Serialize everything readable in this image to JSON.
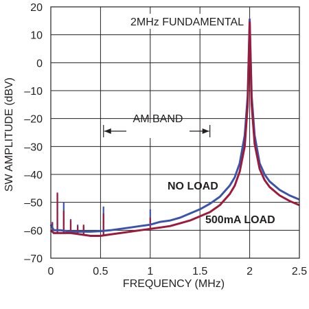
{
  "chart_data": {
    "type": "line",
    "title": "",
    "xlabel": "FREQUENCY (MHz)",
    "ylabel": "SW AMPLITUDE (dBV)",
    "xlim": [
      0,
      2.5
    ],
    "ylim": [
      -70,
      20
    ],
    "x_ticks": [
      "0",
      "0.5",
      "1",
      "1.5",
      "2",
      "2.5"
    ],
    "y_ticks": [
      "–70",
      "–60",
      "–50",
      "–40",
      "–30",
      "–20",
      "–10",
      "0",
      "10",
      "20"
    ],
    "grid": true,
    "colors": {
      "no_load": "#3a55a8",
      "load": "#9b1b3c",
      "grid": "#231f20"
    },
    "series": [
      {
        "name": "NO LOAD",
        "color": "#3a55a8",
        "points": [
          [
            0.0,
            -58.0
          ],
          [
            0.03,
            -60.0
          ],
          [
            0.1,
            -60.0
          ],
          [
            0.2,
            -60.5
          ],
          [
            0.3,
            -60.5
          ],
          [
            0.4,
            -60.5
          ],
          [
            0.5,
            -60.3
          ],
          [
            0.6,
            -60.0
          ],
          [
            0.7,
            -59.5
          ],
          [
            0.8,
            -59.0
          ],
          [
            0.9,
            -58.5
          ],
          [
            1.0,
            -58.0
          ],
          [
            1.1,
            -57.0
          ],
          [
            1.2,
            -56.5
          ],
          [
            1.3,
            -55.5
          ],
          [
            1.4,
            -54.0
          ],
          [
            1.5,
            -52.5
          ],
          [
            1.6,
            -50.5
          ],
          [
            1.7,
            -48.0
          ],
          [
            1.8,
            -44.0
          ],
          [
            1.85,
            -41.0
          ],
          [
            1.9,
            -36.0
          ],
          [
            1.95,
            -26.0
          ],
          [
            1.98,
            -12.0
          ],
          [
            2.0,
            15.5
          ],
          [
            2.02,
            -12.0
          ],
          [
            2.05,
            -26.0
          ],
          [
            2.1,
            -36.0
          ],
          [
            2.15,
            -40.0
          ],
          [
            2.2,
            -42.5
          ],
          [
            2.3,
            -45.5
          ],
          [
            2.4,
            -47.5
          ],
          [
            2.5,
            -49.0
          ]
        ],
        "spurs": [
          [
            0.016,
            -57.0
          ],
          [
            0.066,
            -47.0
          ],
          [
            0.13,
            -50.0
          ],
          [
            0.2,
            -56.0
          ],
          [
            0.27,
            -58.0
          ],
          [
            0.33,
            -58.5
          ],
          [
            0.53,
            -51.5
          ],
          [
            1.0,
            -52.5
          ]
        ]
      },
      {
        "name": "500mA LOAD",
        "color": "#9b1b3c",
        "points": [
          [
            0.0,
            -60.0
          ],
          [
            0.03,
            -61.0
          ],
          [
            0.1,
            -61.0
          ],
          [
            0.2,
            -61.0
          ],
          [
            0.3,
            -61.5
          ],
          [
            0.4,
            -62.0
          ],
          [
            0.5,
            -62.0
          ],
          [
            0.6,
            -61.5
          ],
          [
            0.7,
            -61.0
          ],
          [
            0.8,
            -60.5
          ],
          [
            0.9,
            -60.0
          ],
          [
            1.0,
            -59.5
          ],
          [
            1.1,
            -59.0
          ],
          [
            1.2,
            -58.5
          ],
          [
            1.3,
            -57.5
          ],
          [
            1.4,
            -56.5
          ],
          [
            1.5,
            -55.0
          ],
          [
            1.6,
            -53.5
          ],
          [
            1.7,
            -51.0
          ],
          [
            1.8,
            -47.0
          ],
          [
            1.85,
            -44.0
          ],
          [
            1.9,
            -39.0
          ],
          [
            1.95,
            -30.0
          ],
          [
            1.98,
            -15.0
          ],
          [
            2.0,
            14.5
          ],
          [
            2.02,
            -15.0
          ],
          [
            2.05,
            -29.0
          ],
          [
            2.1,
            -38.0
          ],
          [
            2.15,
            -42.0
          ],
          [
            2.2,
            -44.5
          ],
          [
            2.3,
            -47.5
          ],
          [
            2.4,
            -49.5
          ],
          [
            2.5,
            -51.0
          ]
        ],
        "spurs": [
          [
            0.016,
            -57.5
          ],
          [
            0.066,
            -46.5
          ],
          [
            0.13,
            -53.0
          ],
          [
            0.2,
            -56.5
          ],
          [
            0.27,
            -58.5
          ],
          [
            0.33,
            -58.0
          ],
          [
            0.53,
            -54.0
          ],
          [
            1.0,
            -55.5
          ]
        ]
      }
    ],
    "annotations": {
      "fundamental": "2MHz FUNDAMENTAL",
      "am_band": "AM BAND",
      "am_band_range": [
        0.53,
        1.6
      ],
      "am_band_level": -24.5
    }
  }
}
